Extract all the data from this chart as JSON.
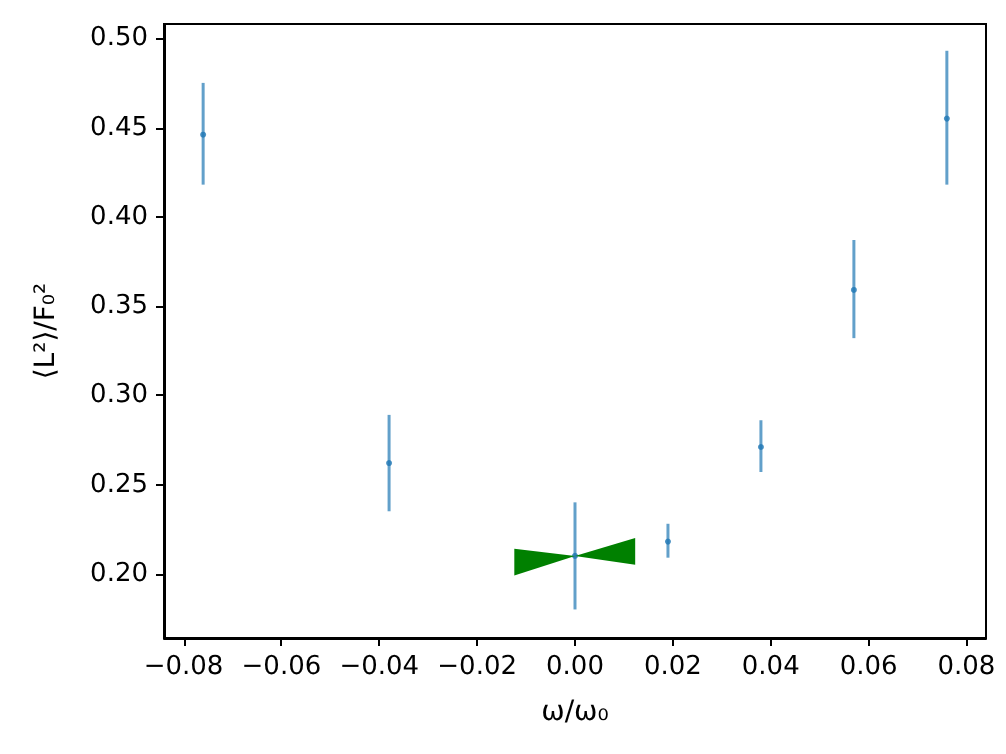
{
  "chart_data": {
    "type": "scatter",
    "xlabel": "ω/ω₀",
    "ylabel": "⟨L²⟩/F₀²",
    "x": [
      -0.076,
      -0.038,
      0,
      0.019,
      0.038,
      0.057,
      0.076
    ],
    "series": [
      {
        "color": "#1f77b4",
        "values": [
          0.446,
          0.262,
          0.21,
          0.218,
          0.271,
          0.359,
          0.455
        ],
        "errors": [
          [
            0.418,
            0.475
          ],
          [
            0.235,
            0.289
          ],
          [
            0.18,
            0.24
          ],
          [
            0.209,
            0.228
          ],
          [
            0.257,
            0.286
          ],
          [
            0.332,
            0.387
          ],
          [
            0.418,
            0.493
          ]
        ]
      }
    ],
    "marker": "circle",
    "xlim": [
      -0.084,
      0.084
    ],
    "xticks": [
      {
        "value": -0.08,
        "label": "−0.08"
      },
      {
        "value": -0.06,
        "label": "−0.06"
      },
      {
        "value": -0.04,
        "label": "−0.04"
      },
      {
        "value": -0.02,
        "label": "−0.02"
      },
      {
        "value": 0,
        "label": "0.00"
      },
      {
        "value": 0.02,
        "label": "0.02"
      },
      {
        "value": 0.04,
        "label": "0.04"
      },
      {
        "value": 0.06,
        "label": "0.06"
      },
      {
        "value": 0.08,
        "label": "0.08"
      }
    ],
    "ylim": [
      0.164,
      0.508
    ],
    "yticks": [
      {
        "value": 0.2,
        "label": "0.20"
      },
      {
        "value": 0.25,
        "label": "0.25"
      },
      {
        "value": 0.3,
        "label": "0.30"
      },
      {
        "value": 0.35,
        "label": "0.35"
      },
      {
        "value": 0.4,
        "label": "0.40"
      },
      {
        "value": 0.45,
        "label": "0.45"
      },
      {
        "value": 0.5,
        "label": "0.50"
      }
    ],
    "grid": false
  }
}
